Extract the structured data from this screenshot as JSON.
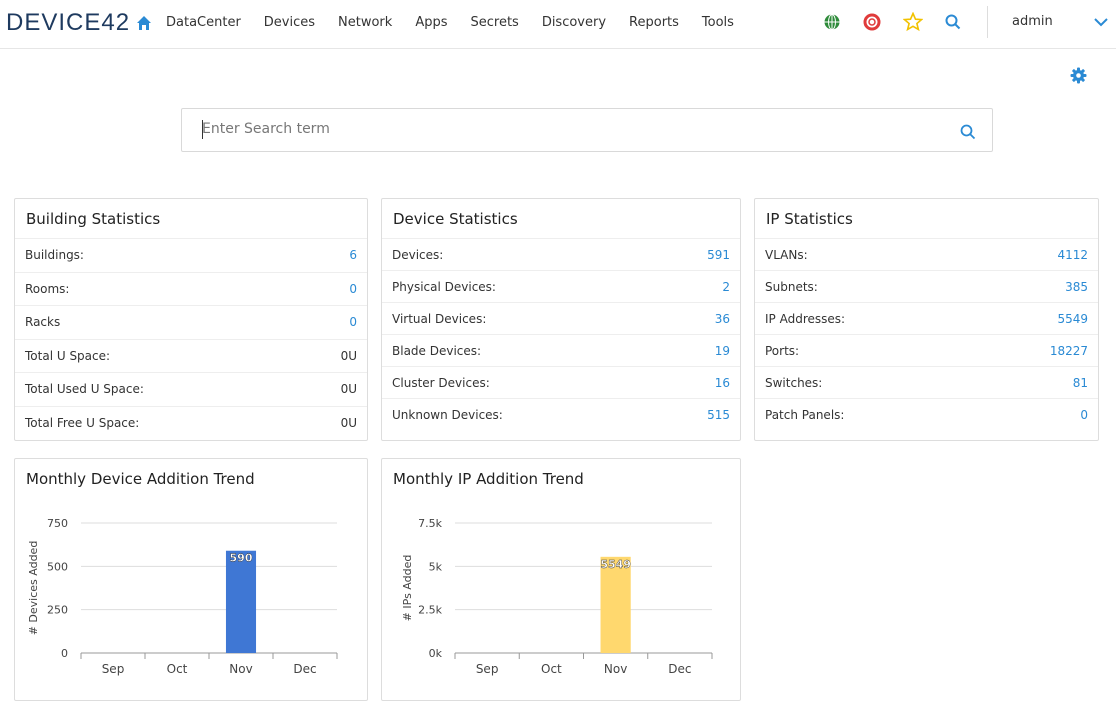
{
  "header": {
    "logo": "DEVICE42",
    "nav": [
      "DataCenter",
      "Devices",
      "Network",
      "Apps",
      "Secrets",
      "Discovery",
      "Reports",
      "Tools"
    ],
    "user": "admin"
  },
  "search": {
    "placeholder": "Enter Search term"
  },
  "panels": [
    {
      "title": "Building Statistics",
      "rows": [
        [
          "Buildings:",
          "6"
        ],
        [
          "Rooms:",
          "0"
        ],
        [
          "Racks",
          "0"
        ],
        [
          "Total U Space:",
          "0U"
        ],
        [
          "Total Used U Space:",
          "0U"
        ],
        [
          "Total Free U Space:",
          "0U"
        ]
      ]
    },
    {
      "title": "Device Statistics",
      "rows": [
        [
          "Devices:",
          "591"
        ],
        [
          "Physical Devices:",
          "2"
        ],
        [
          "Virtual Devices:",
          "36"
        ],
        [
          "Blade Devices:",
          "19"
        ],
        [
          "Cluster Devices:",
          "16"
        ],
        [
          "Unknown Devices:",
          "515"
        ]
      ]
    },
    {
      "title": "IP Statistics",
      "rows": [
        [
          "VLANs:",
          "4112"
        ],
        [
          "Subnets:",
          "385"
        ],
        [
          "IP Addresses:",
          "5549"
        ],
        [
          "Ports:",
          "18227"
        ],
        [
          "Switches:",
          "81"
        ],
        [
          "Patch Panels:",
          "0"
        ]
      ]
    }
  ],
  "chart_data": [
    {
      "type": "bar",
      "title": "Monthly Device Addition Trend",
      "y_label": "# Devices Added",
      "categories": [
        "Sep",
        "Oct",
        "Nov",
        "Dec"
      ],
      "values": [
        0,
        0,
        590,
        0
      ],
      "color": "#3f77d4",
      "ylim": [
        0,
        750
      ],
      "yticks": [
        0,
        250,
        500,
        750
      ],
      "grid": true
    },
    {
      "type": "bar",
      "title": "Monthly IP Addition Trend",
      "y_label": "# IPs Added",
      "categories": [
        "Sep",
        "Oct",
        "Nov",
        "Dec"
      ],
      "values": [
        0,
        0,
        5549,
        0
      ],
      "color": "#ffd86e",
      "ylim": [
        0,
        7500
      ],
      "yticks": [
        {
          "value": 0,
          "label": "0k"
        },
        {
          "value": 2500,
          "label": "2.5k"
        },
        {
          "value": 5000,
          "label": "5k"
        },
        {
          "value": 7500,
          "label": "7.5k"
        }
      ],
      "grid": true
    }
  ]
}
